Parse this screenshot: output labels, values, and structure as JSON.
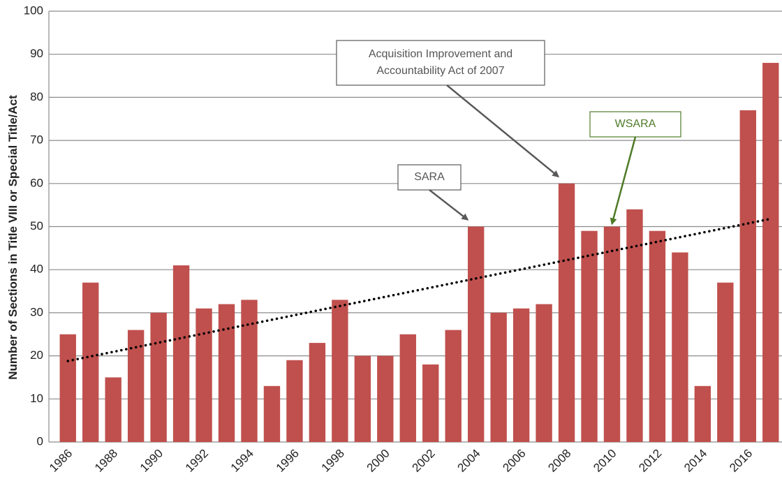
{
  "chart_data": {
    "type": "bar",
    "y_axis_label": "Number of Sections in Title VIII or Special Title/Act",
    "categories": [
      "1986",
      null,
      "1988",
      null,
      "1990",
      null,
      "1992",
      null,
      "1994",
      null,
      "1996",
      null,
      "1998",
      null,
      "2000",
      null,
      "2002",
      null,
      "2004",
      null,
      "2006",
      null,
      "2008",
      null,
      "2010",
      null,
      "2012",
      null,
      "2014",
      null,
      "2016",
      null
    ],
    "values": [
      25,
      37,
      15,
      26,
      30,
      41,
      31,
      32,
      33,
      13,
      19,
      23,
      33,
      20,
      20,
      25,
      18,
      26,
      50,
      30,
      31,
      32,
      60,
      49,
      50,
      54,
      49,
      44,
      13,
      37,
      77,
      88
    ],
    "color": "#c0504d",
    "ylim": [
      0,
      100
    ],
    "yticks": [
      0,
      10,
      20,
      30,
      40,
      50,
      60,
      70,
      80,
      90,
      100
    ],
    "grid": true,
    "trendline": {
      "start": 18.8,
      "end": 51.8,
      "color": "#000000"
    },
    "annotations": [
      {
        "lines": [
          "SARA"
        ],
        "target": "2004",
        "color": "#555555"
      },
      {
        "lines": [
          "Acquisition Improvement and",
          "Accountability Act of 2007"
        ],
        "target": "2008",
        "color": "#555555"
      },
      {
        "lines": [
          "WSARA"
        ],
        "target": "2010",
        "color": "#4f7a28"
      }
    ]
  }
}
